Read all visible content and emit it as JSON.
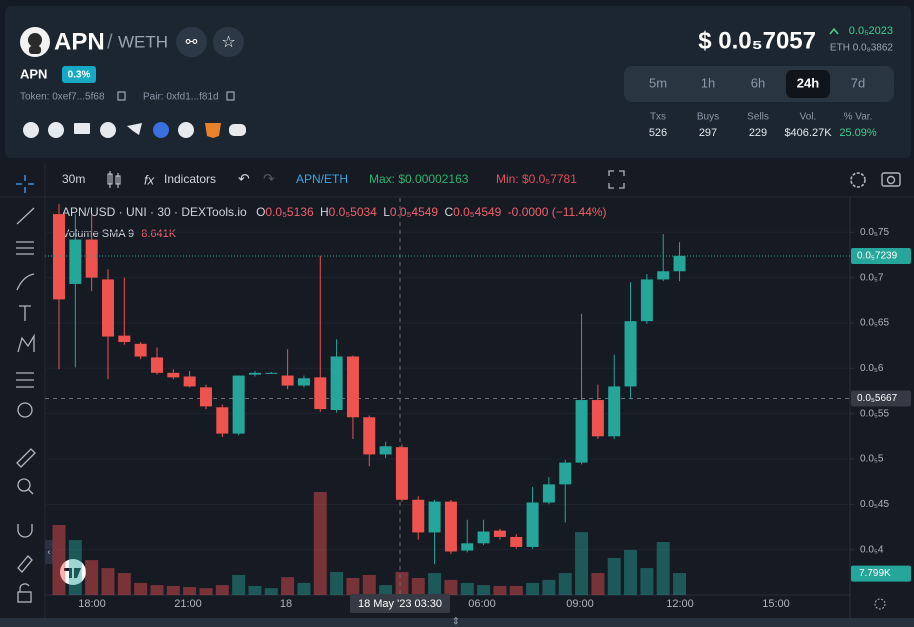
{
  "header": {
    "symbol": "APN",
    "separator": "/",
    "quote": "WETH",
    "name": "APN",
    "fee": "0.3%",
    "token": "Token: 0xef7...5f68",
    "pair": "Pair: 0xfd1...f81d",
    "price": "$ 0.0₅7057",
    "change": "0.0₅2023",
    "price_eth": "ETH 0.0₈3862"
  },
  "timeframes": {
    "options": [
      "5m",
      "1h",
      "6h",
      "24h",
      "7d"
    ],
    "active": "24h"
  },
  "stats": [
    {
      "label": "Txs",
      "value": 526
    },
    {
      "label": "Buys",
      "value": 297
    },
    {
      "label": "Sells",
      "value": 229
    },
    {
      "label": "Vol.",
      "value": "$406.27K"
    },
    {
      "label": "% Var.",
      "value": "25.09%"
    }
  ],
  "toolbar": {
    "interval": "30m",
    "indicators": "Indicators",
    "pair": "APN/ETH",
    "max": "Max: $0.00002163",
    "min": "Min: $0.0₅7781"
  },
  "chart_data": {
    "type": "candlestick",
    "legend": {
      "title": "APN/USD · UNI · 30 · DEXTools.io",
      "ohlc": [
        {
          "key": "O",
          "value": "0.0₅5136"
        },
        {
          "key": "H",
          "value": "0.0₅5034"
        },
        {
          "key": "L",
          "value": "0.0₅4549"
        },
        {
          "key": "C",
          "value": "0.0₅4549"
        }
      ],
      "change": "-0.0000 (−11.44%)",
      "volume": "Volume SMA 9",
      "volume_value": "8.641K"
    },
    "open": [
      7.7e-06,
      6.93e-06,
      7.42e-06,
      6.98e-06,
      6.36e-06,
      6.27e-06,
      6.12e-06,
      5.95e-06,
      5.91e-06,
      5.79e-06,
      5.57e-06,
      5.28e-06,
      5.93e-06,
      5.94e-06,
      5.92e-06,
      5.81e-06,
      5.9e-06,
      5.54e-06,
      6.13e-06,
      5.46e-06,
      5.05e-06,
      5.13e-06,
      4.55e-06,
      4.19e-06,
      4.53e-06,
      3.99e-06,
      4.07e-06,
      4.21e-06,
      4.14e-06,
      4.03e-06,
      4.52e-06,
      4.72e-06,
      4.96e-06,
      5.65e-06,
      5.25e-06,
      5.8e-06,
      6.52e-06,
      6.98e-06,
      7.07e-06
    ],
    "high": [
      7.81e-06,
      7.7e-06,
      7.7e-06,
      7.09e-06,
      7e-06,
      6.29e-06,
      6.23e-06,
      5.99e-06,
      5.97e-06,
      5.82e-06,
      5.6e-06,
      5.92e-06,
      5.97e-06,
      5.96e-06,
      6.21e-06,
      5.92e-06,
      7.24e-06,
      6.32e-06,
      6.14e-06,
      5.48e-06,
      5.19e-06,
      5.16e-06,
      4.59e-06,
      4.55e-06,
      4.55e-06,
      4.33e-06,
      4.33e-06,
      4.23e-06,
      4.17e-06,
      4.69e-06,
      4.8e-06,
      4.99e-06,
      6.6e-06,
      5.82e-06,
      6.15e-06,
      6.95e-06,
      7.04e-06,
      7.48e-06,
      7.39e-06
    ],
    "low": [
      5.99e-06,
      6.01e-06,
      6.85e-06,
      5.88e-06,
      6.26e-06,
      6.1e-06,
      5.93e-06,
      5.88e-06,
      5.79e-06,
      5.55e-06,
      5.24e-06,
      5.26e-06,
      5.91e-06,
      5.94e-06,
      5.77e-06,
      5.79e-06,
      5.52e-06,
      5.51e-06,
      5.22e-06,
      4.92e-06,
      5.01e-06,
      4.53e-06,
      4.11e-06,
      3.84e-06,
      3.95e-06,
      3.97e-06,
      4.05e-06,
      4.11e-06,
      4.01e-06,
      4.01e-06,
      4.5e-06,
      4.3e-06,
      4.94e-06,
      5.22e-06,
      5.22e-06,
      5.66e-06,
      6.49e-06,
      6.96e-06,
      6.96e-06
    ],
    "close": [
      6.76e-06,
      7.42e-06,
      7e-06,
      6.35e-06,
      6.29e-06,
      6.13e-06,
      5.95e-06,
      5.9e-06,
      5.8e-06,
      5.58e-06,
      5.28e-06,
      5.92e-06,
      5.95e-06,
      5.95e-06,
      5.81e-06,
      5.89e-06,
      5.55e-06,
      6.13e-06,
      5.46e-06,
      5.05e-06,
      5.14e-06,
      4.55e-06,
      4.19e-06,
      4.53e-06,
      3.98e-06,
      4.07e-06,
      4.2e-06,
      4.14e-06,
      4.03e-06,
      4.52e-06,
      4.72e-06,
      4.96e-06,
      5.65e-06,
      5.25e-06,
      5.8e-06,
      6.52e-06,
      6.98e-06,
      7.07e-06,
      7.24e-06
    ],
    "volume": [
      25500,
      20000,
      12700,
      9800,
      8000,
      4400,
      3600,
      3300,
      2900,
      2500,
      3600,
      7300,
      3300,
      2500,
      6500,
      4400,
      37500,
      8400,
      6200,
      7300,
      3600,
      8400,
      6200,
      8000,
      5500,
      4400,
      3600,
      3300,
      3300,
      4400,
      5500,
      8000,
      22900,
      8000,
      13500,
      16400,
      9800,
      19300,
      8000
    ],
    "up_color": "#26a69a",
    "down_color": "#ef5350",
    "ylim": [
      3.5e-06,
      7.9e-06
    ],
    "yticks": [
      {
        "value": 7.5e-06,
        "label": "0.0₅75"
      },
      {
        "value": 7e-06,
        "label": "0.0₅7"
      },
      {
        "value": 6.5e-06,
        "label": "0.0₅65"
      },
      {
        "value": 6e-06,
        "label": "0.0₅6"
      },
      {
        "value": 5.5e-06,
        "label": "0.0₅55"
      },
      {
        "value": 5e-06,
        "label": "0.0₅5"
      },
      {
        "value": 4.5e-06,
        "label": "0.0₅45"
      },
      {
        "value": 4e-06,
        "label": "0.0₅4"
      }
    ],
    "grid": true,
    "last_price": {
      "value": 7.239e-06,
      "label": "0.0₅7239"
    },
    "crosshair_price": {
      "value": 5.667e-06,
      "label": "0.0₅5667"
    },
    "volume_badge": {
      "value": 7799,
      "label": "7.799K"
    },
    "x_labels": [
      "18:00",
      "21:00",
      "18",
      "06:00",
      "09:00",
      "12:00",
      "15:00"
    ],
    "crosshair_time": "18 May '23  03:30"
  }
}
